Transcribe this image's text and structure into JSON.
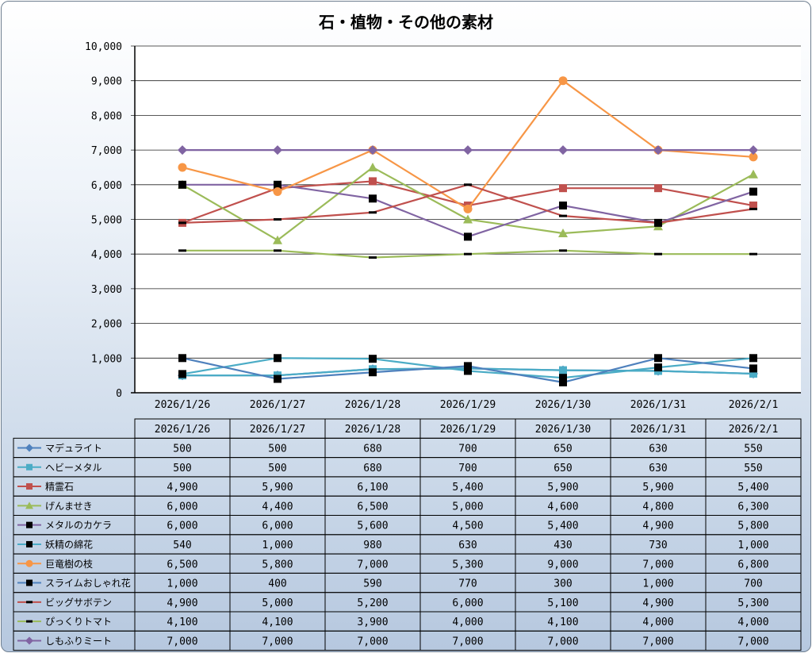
{
  "chart_data": {
    "type": "line",
    "title": "石・植物・その他の素材",
    "categories": [
      "2026/1/26",
      "2026/1/27",
      "2026/1/28",
      "2026/1/29",
      "2026/1/30",
      "2026/1/31",
      "2026/2/1"
    ],
    "y_tick_labels": [
      "0",
      "1,000",
      "2,000",
      "3,000",
      "4,000",
      "5,000",
      "6,000",
      "7,000",
      "8,000",
      "9,000",
      "10,000"
    ],
    "ylim": [
      0,
      10000
    ],
    "grid": true,
    "legend": "data-table",
    "series": [
      {
        "name": "マデュライト",
        "color": "#4f81bd",
        "marker": "diamond",
        "values": [
          500,
          500,
          680,
          700,
          650,
          630,
          550
        ],
        "labels": [
          "500",
          "500",
          "680",
          "700",
          "650",
          "630",
          "550"
        ]
      },
      {
        "name": "ヘビーメタル",
        "color": "#4bacc6",
        "marker": "square",
        "values": [
          500,
          500,
          680,
          700,
          650,
          630,
          550
        ],
        "labels": [
          "500",
          "500",
          "680",
          "700",
          "650",
          "630",
          "550"
        ]
      },
      {
        "name": "精霊石",
        "color": "#c0504d",
        "marker": "square",
        "values": [
          4900,
          5900,
          6100,
          5400,
          5900,
          5900,
          5400
        ],
        "labels": [
          "4,900",
          "5,900",
          "6,100",
          "5,400",
          "5,900",
          "5,900",
          "5,400"
        ]
      },
      {
        "name": "げんませき",
        "color": "#9bbb59",
        "marker": "triangle",
        "values": [
          6000,
          4400,
          6500,
          5000,
          4600,
          4800,
          6300
        ],
        "labels": [
          "6,000",
          "4,400",
          "6,500",
          "5,000",
          "4,600",
          "4,800",
          "6,300"
        ]
      },
      {
        "name": "メタルのカケラ",
        "color": "#8064a2",
        "marker": "blacksquare",
        "values": [
          6000,
          6000,
          5600,
          4500,
          5400,
          4900,
          5800
        ],
        "labels": [
          "6,000",
          "6,000",
          "5,600",
          "4,500",
          "5,400",
          "4,900",
          "5,800"
        ]
      },
      {
        "name": "妖精の綿花",
        "color": "#4bacc6",
        "marker": "blacksquare",
        "values": [
          540,
          1000,
          980,
          630,
          430,
          730,
          1000
        ],
        "labels": [
          "540",
          "1,000",
          "980",
          "630",
          "430",
          "730",
          "1,000"
        ]
      },
      {
        "name": "巨竜樹の枝",
        "color": "#f79646",
        "marker": "circle",
        "values": [
          6500,
          5800,
          7000,
          5300,
          9000,
          7000,
          6800
        ],
        "labels": [
          "6,500",
          "5,800",
          "7,000",
          "5,300",
          "9,000",
          "7,000",
          "6,800"
        ]
      },
      {
        "name": "スライムおしゃれ花",
        "color": "#4f81bd",
        "marker": "blacksquare",
        "values": [
          1000,
          400,
          590,
          770,
          300,
          1000,
          700
        ],
        "labels": [
          "1,000",
          "400",
          "590",
          "770",
          "300",
          "1,000",
          "700"
        ]
      },
      {
        "name": "ビッグサボテン",
        "color": "#c0504d",
        "marker": "dash",
        "values": [
          4900,
          5000,
          5200,
          6000,
          5100,
          4900,
          5300
        ],
        "labels": [
          "4,900",
          "5,000",
          "5,200",
          "6,000",
          "5,100",
          "4,900",
          "5,300"
        ]
      },
      {
        "name": "ぴっくりトマト",
        "color": "#9bbb59",
        "marker": "dash",
        "values": [
          4100,
          4100,
          3900,
          4000,
          4100,
          4000,
          4000
        ],
        "labels": [
          "4,100",
          "4,100",
          "3,900",
          "4,000",
          "4,100",
          "4,000",
          "4,000"
        ]
      },
      {
        "name": "しもふりミート",
        "color": "#8064a2",
        "marker": "diamond",
        "values": [
          7000,
          7000,
          7000,
          7000,
          7000,
          7000,
          7000
        ],
        "labels": [
          "7,000",
          "7,000",
          "7,000",
          "7,000",
          "7,000",
          "7,000",
          "7,000"
        ]
      }
    ]
  }
}
